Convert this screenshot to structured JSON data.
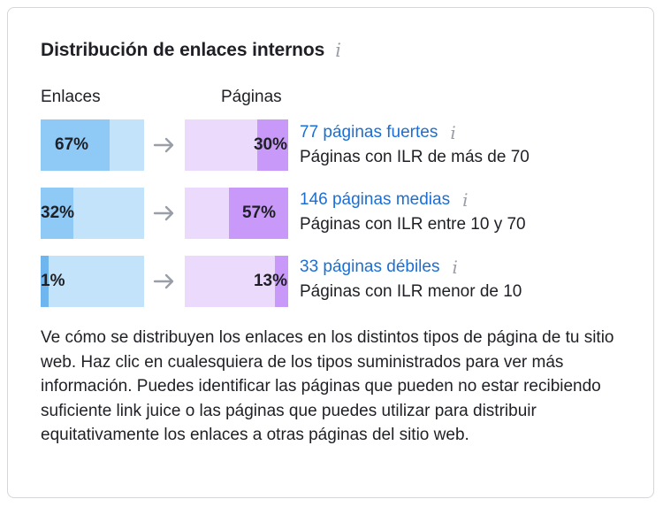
{
  "widget": {
    "title": "Distribución de enlaces internos",
    "title_icon": "info-icon",
    "columns": {
      "links_label": "Enlaces",
      "pages_label": "Páginas"
    },
    "rows": [
      {
        "links_pct_label": "67%",
        "links_fraction": 0.67,
        "pages_pct_label": "30%",
        "pages_fraction": 0.3,
        "link_text": "77 páginas fuertes",
        "description": "Páginas con ILR de más de 70"
      },
      {
        "links_pct_label": "32%",
        "links_fraction": 0.32,
        "pages_pct_label": "57%",
        "pages_fraction": 0.57,
        "link_text": "146 páginas medias",
        "description": "Páginas con ILR entre 10 y 70"
      },
      {
        "links_pct_label": "1%",
        "links_fraction": 0.01,
        "pages_pct_label": "13%",
        "pages_fraction": 0.13,
        "link_text": "33 páginas débiles",
        "description": "Páginas con ILR menor de 10"
      }
    ],
    "paragraph": "Ve cómo se distribuyen los enlaces en los distintos tipos de página de tu sitio web. Haz clic en cualesquiera de los tipos suministrados para ver más información. Puedes identificar las páginas que pueden no estar recibiendo suficiente link juice o las páginas que puedes utilizar para distribuir equitativamente los enlaces a otras páginas del sitio web."
  },
  "colors": {
    "links_fill": "#8fcaf7",
    "links_track": "#c3e3fb",
    "pages_fill": "#c899f8",
    "pages_track": "#ebdafc",
    "link": "#1a6fd6",
    "info_icon": "#9a9ea6"
  }
}
